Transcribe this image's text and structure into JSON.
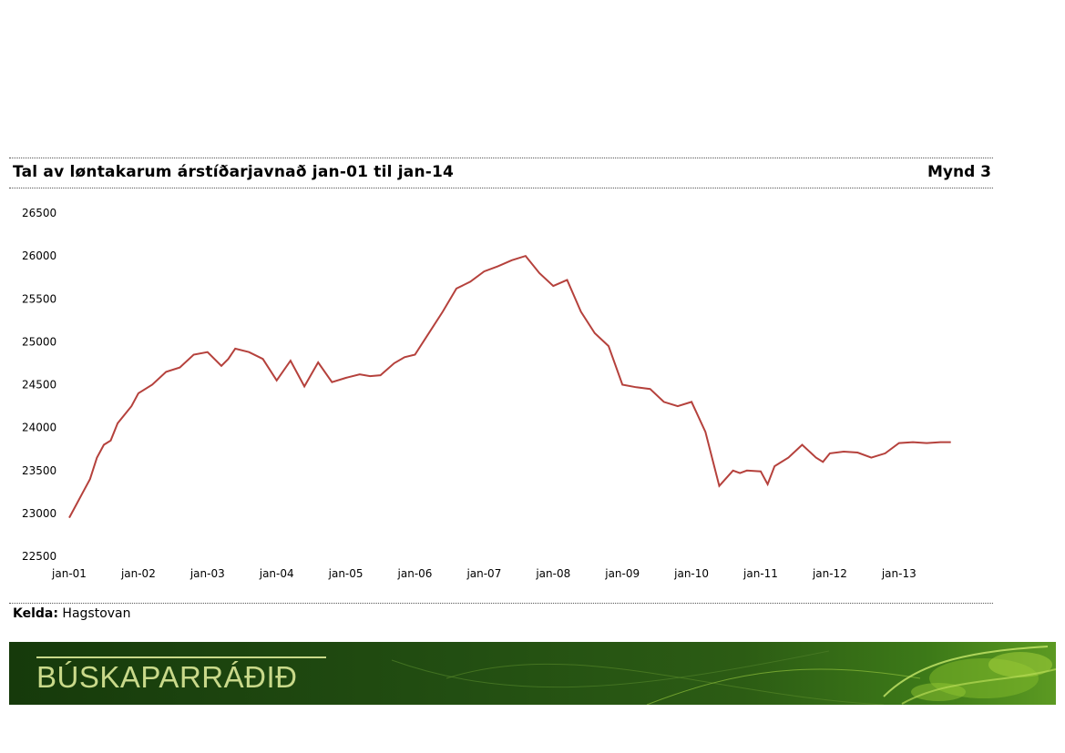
{
  "header": {
    "title": "Tal av løntakarum árstíðarjavnað jan-01 til jan-14",
    "figure_label": "Mynd 3"
  },
  "source": {
    "label": "Kelda:",
    "value": "Hagstovan"
  },
  "banner": {
    "text": "BÚSKAPARRÁÐIÐ"
  },
  "colors": {
    "line": "#b5413c",
    "banner_text": "#c9d98a"
  },
  "chart_data": {
    "type": "line",
    "title": "Tal av løntakarum árstíðarjavnað jan-01 til jan-14",
    "xlabel": "",
    "ylabel": "",
    "ylim": [
      22500,
      26500
    ],
    "yticks": [
      22500,
      23000,
      23500,
      24000,
      24500,
      25000,
      25500,
      26000,
      26500
    ],
    "x_categories": [
      "jan-01",
      "jan-02",
      "jan-03",
      "jan-04",
      "jan-05",
      "jan-06",
      "jan-07",
      "jan-08",
      "jan-09",
      "jan-10",
      "jan-11",
      "jan-12",
      "jan-13"
    ],
    "grid": false,
    "legend": "none",
    "series": [
      {
        "x": [
          0,
          0.1,
          0.2,
          0.3,
          0.4,
          0.5,
          0.6,
          0.7,
          0.8,
          0.9,
          1.0,
          1.2,
          1.4,
          1.6,
          1.8,
          2.0,
          2.2,
          2.3,
          2.4,
          2.6,
          2.8,
          3.0,
          3.2,
          3.4,
          3.6,
          3.8,
          4.0,
          4.2,
          4.35,
          4.5,
          4.7,
          4.85,
          5.0,
          5.2,
          5.4,
          5.6,
          5.8,
          6.0,
          6.2,
          6.4,
          6.6,
          6.8,
          7.0,
          7.2,
          7.4,
          7.6,
          7.8,
          8.0,
          8.2,
          8.4,
          8.6,
          8.8,
          9.0,
          9.2,
          9.4,
          9.6,
          9.7,
          9.8,
          10.0,
          10.1,
          10.2,
          10.4,
          10.6,
          10.8,
          10.9,
          11.0,
          11.2,
          11.4,
          11.6,
          11.8,
          12.0,
          12.2,
          12.4,
          12.6,
          12.75
        ],
        "values": [
          22950,
          23100,
          23250,
          23400,
          23650,
          23800,
          23850,
          24050,
          24150,
          24250,
          24400,
          24500,
          24650,
          24700,
          24850,
          24880,
          24720,
          24800,
          24920,
          24880,
          24800,
          24550,
          24780,
          24480,
          24760,
          24530,
          24580,
          24620,
          24600,
          24610,
          24750,
          24820,
          24850,
          25100,
          25350,
          25620,
          25700,
          25820,
          25880,
          25950,
          26000,
          25800,
          25650,
          25720,
          25350,
          25100,
          24950,
          24500,
          24470,
          24450,
          24300,
          24250,
          24300,
          23950,
          23320,
          23500,
          23470,
          23500,
          23490,
          23340,
          23550,
          23650,
          23800,
          23650,
          23600,
          23700,
          23720,
          23710,
          23650,
          23700,
          23820,
          23830,
          23820,
          23830,
          23830
        ]
      }
    ]
  }
}
